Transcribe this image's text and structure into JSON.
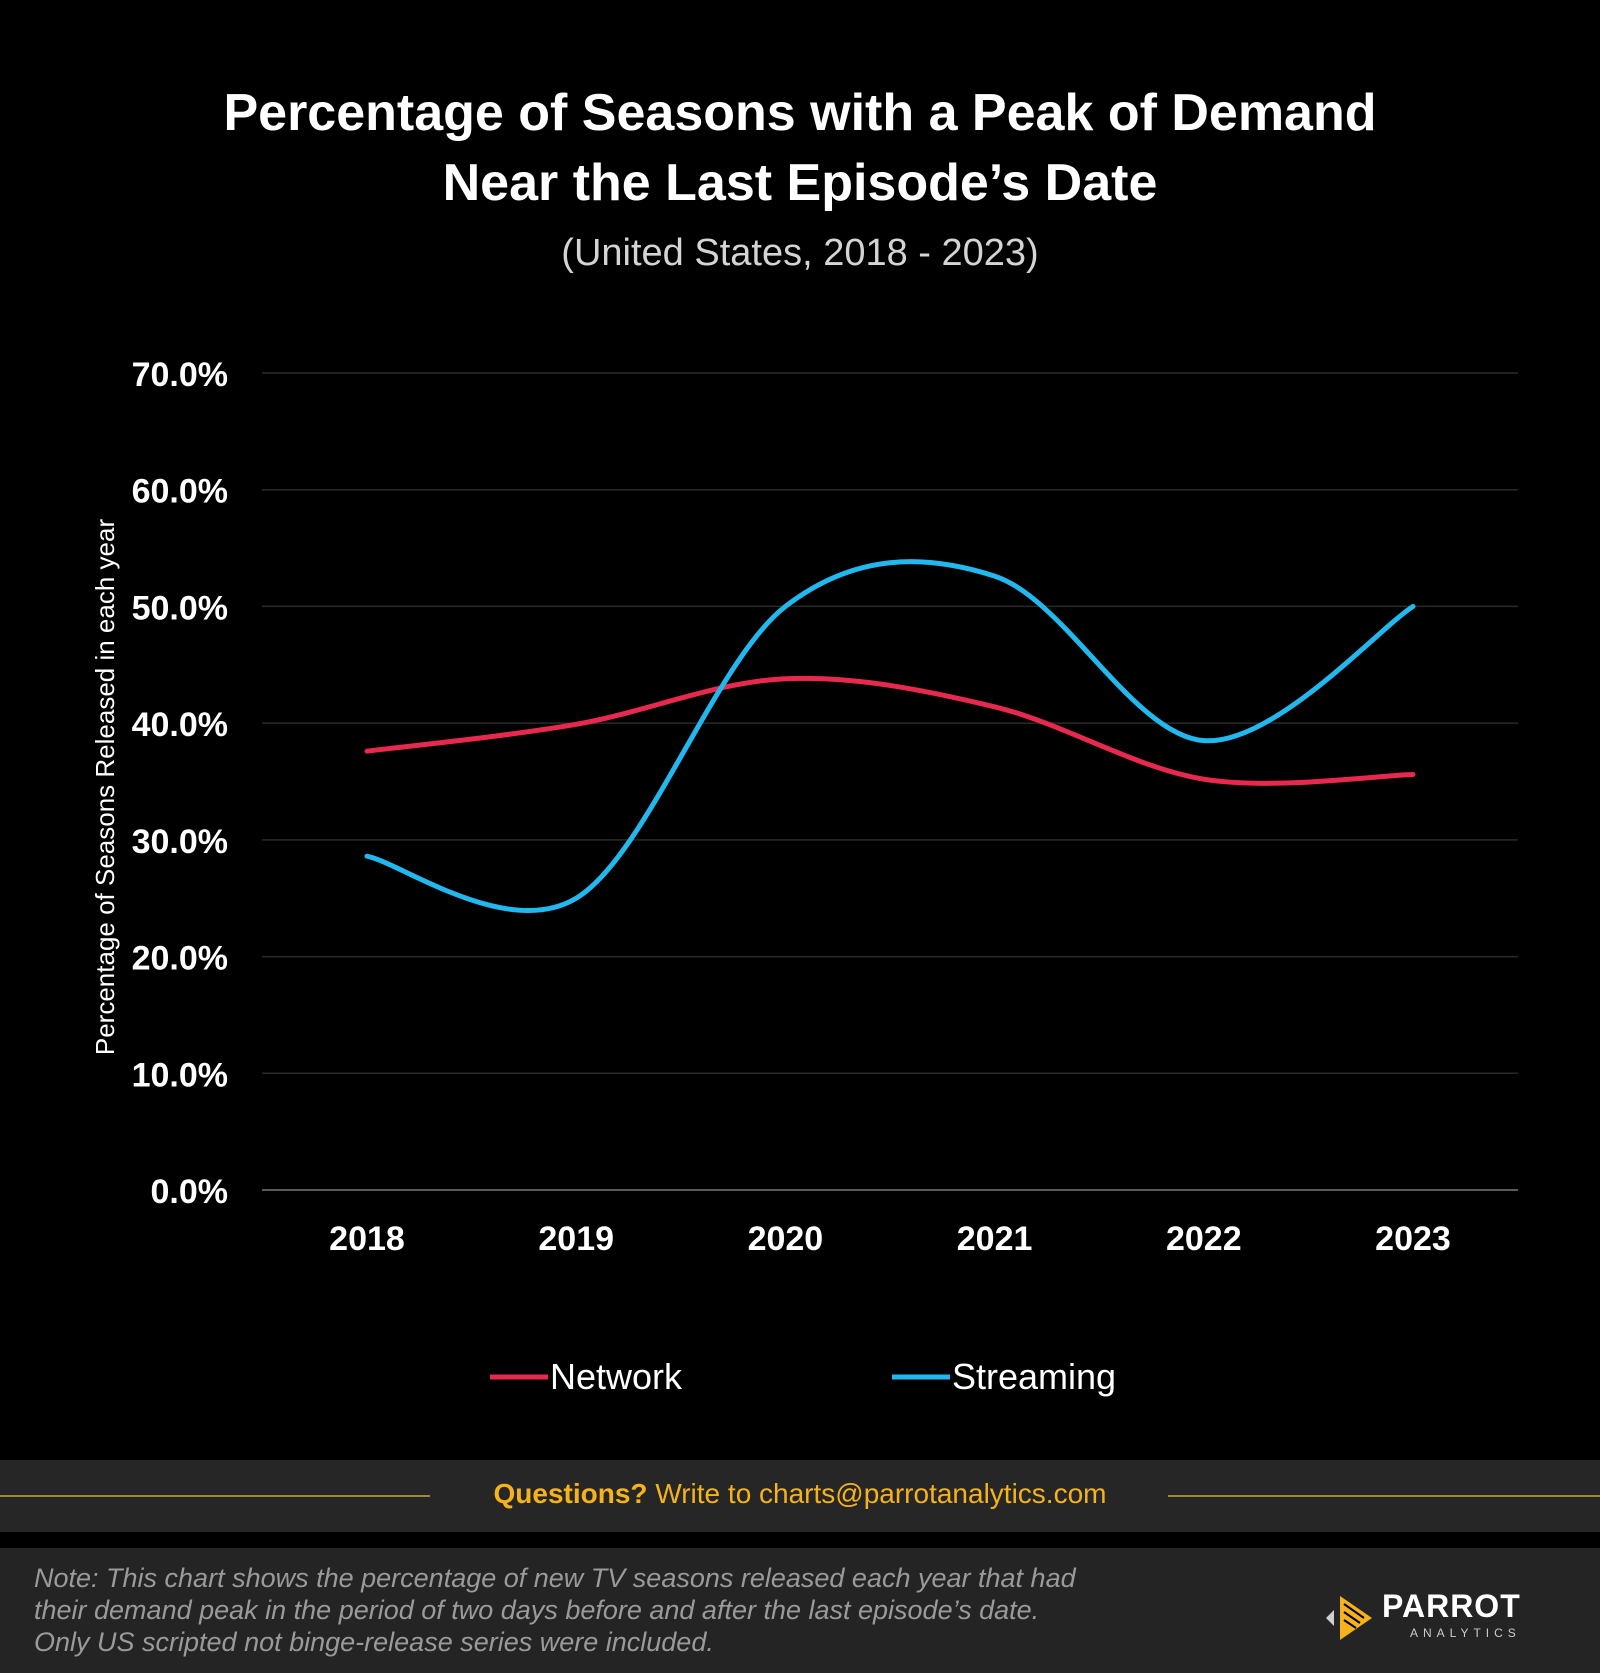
{
  "title_lines": [
    "Percentage of Seasons with a Peak of Demand",
    "Near the Last Episode’s Date"
  ],
  "subtitle": "(United States,  2018 - 2023)",
  "chart_data": {
    "type": "line",
    "title": "Percentage of Seasons with a Peak of Demand Near the Last Episode’s Date",
    "subtitle": "(United States,  2018 - 2023)",
    "xlabel": "",
    "ylabel": "Percentage of Seasons Released in each year",
    "categories": [
      "2018",
      "2019",
      "2020",
      "2021",
      "2022",
      "2023"
    ],
    "y_ticks": [
      "0.0%",
      "10.0%",
      "20.0%",
      "30.0%",
      "40.0%",
      "50.0%",
      "60.0%",
      "70.0%"
    ],
    "ylim": [
      0,
      70
    ],
    "grid": true,
    "smooth": true,
    "legend_position": "bottom-center",
    "series": [
      {
        "name": "Network",
        "color": "#e8294f",
        "values": [
          37.6,
          39.9,
          43.8,
          41.4,
          35.2,
          35.6
        ]
      },
      {
        "name": "Streaming",
        "color": "#22b8ee",
        "values": [
          28.6,
          25.0,
          50.0,
          52.6,
          38.5,
          50.0
        ]
      }
    ]
  },
  "footer": {
    "question_label": "Questions?",
    "contact_text": "Write to charts@parrotanalytics.com",
    "line_color": "#a08a30"
  },
  "note_lines": [
    "Note: This chart shows the percentage of new  TV seasons released each year that had",
    "their demand peak in the period of two days before and after the last episode’s date.",
    "Only US scripted not binge-release series were included."
  ],
  "logo": {
    "name": "PARROT",
    "sub": "ANALYTICS",
    "accent": "#f5b21c"
  }
}
